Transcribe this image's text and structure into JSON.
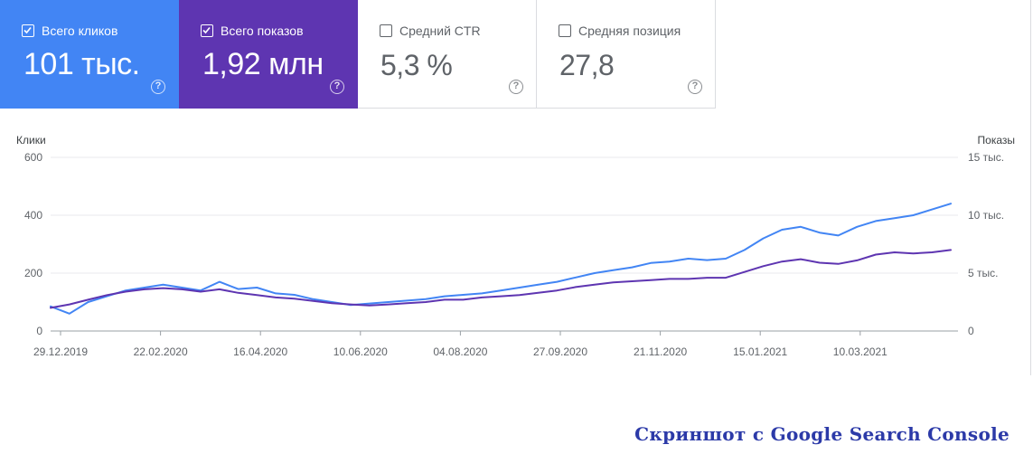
{
  "metrics": [
    {
      "label": "Всего кликов",
      "value": "101 тыс.",
      "checked": true,
      "color": "#4285f4"
    },
    {
      "label": "Всего показов",
      "value": "1,92 млн",
      "checked": true,
      "color": "#5e35b1"
    },
    {
      "label": "Средний CTR",
      "value": "5,3 %",
      "checked": false
    },
    {
      "label": "Средняя позиция",
      "value": "27,8",
      "checked": false
    }
  ],
  "help_icon": "?",
  "caption": "Скриншот с Google Search Console",
  "chart_data": {
    "type": "line",
    "left_axis_label": "Клики",
    "right_axis_label": "Показы",
    "left_ticks": [
      "0",
      "200",
      "400",
      "600"
    ],
    "right_ticks": [
      "0",
      "5 тыс.",
      "10 тыс.",
      "15 тыс."
    ],
    "left_ylim": [
      0,
      600
    ],
    "right_ylim": [
      0,
      15000
    ],
    "x_ticks": [
      "29.12.2019",
      "22.02.2020",
      "16.04.2020",
      "10.06.2020",
      "04.08.2020",
      "27.09.2020",
      "21.11.2020",
      "15.01.2021",
      "10.03.2021"
    ],
    "grid": true,
    "series": [
      {
        "name": "Всего кликов",
        "axis": "left",
        "color": "#4285f4",
        "values": [
          85,
          60,
          100,
          120,
          140,
          150,
          160,
          150,
          140,
          170,
          145,
          150,
          130,
          125,
          110,
          100,
          90,
          95,
          100,
          105,
          110,
          120,
          125,
          130,
          140,
          150,
          160,
          170,
          185,
          200,
          210,
          220,
          235,
          240,
          250,
          245,
          250,
          280,
          320,
          350,
          360,
          340,
          330,
          360,
          380,
          390,
          400,
          420,
          440
        ]
      },
      {
        "name": "Всего показов",
        "axis": "right",
        "color": "#5e35b1",
        "values": [
          2000,
          2300,
          2700,
          3100,
          3400,
          3600,
          3700,
          3600,
          3400,
          3600,
          3300,
          3100,
          2900,
          2800,
          2600,
          2400,
          2300,
          2200,
          2300,
          2400,
          2500,
          2700,
          2700,
          2900,
          3000,
          3100,
          3300,
          3500,
          3800,
          4000,
          4200,
          4300,
          4400,
          4500,
          4500,
          4600,
          4600,
          5100,
          5600,
          6000,
          6200,
          5900,
          5800,
          6100,
          6600,
          6800,
          6700,
          6800,
          7000
        ]
      }
    ]
  }
}
